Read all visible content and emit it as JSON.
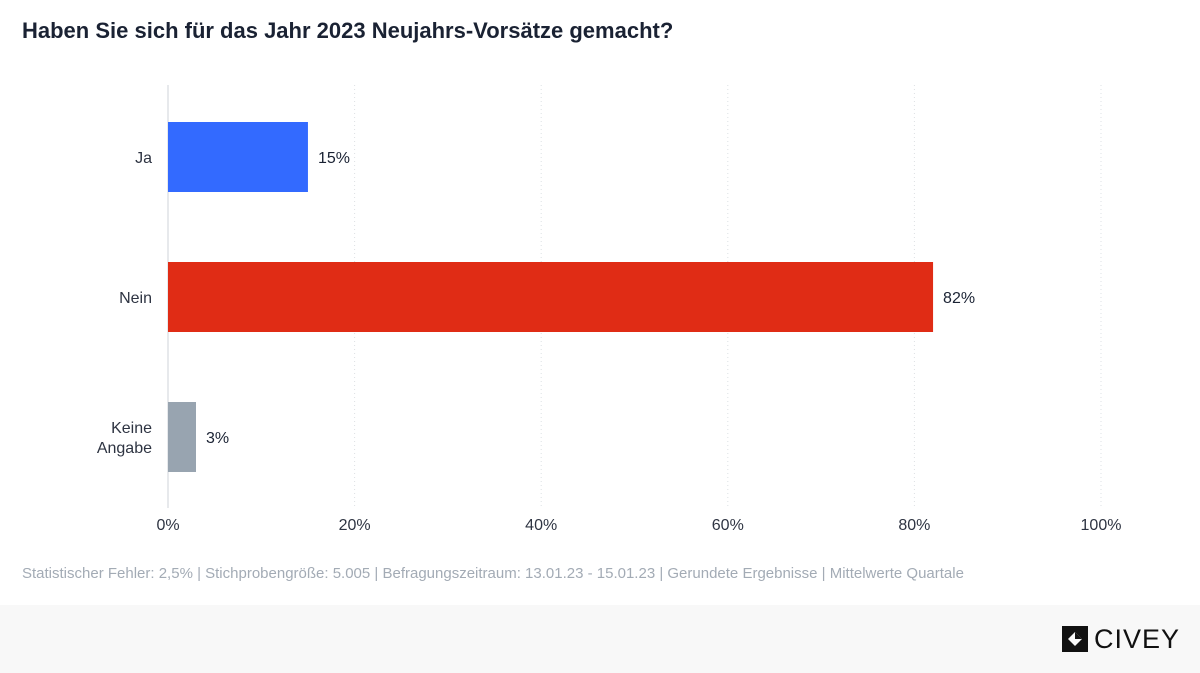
{
  "title": "Haben Sie sich für das Jahr 2023 Neujahrs-Vorsätze gemacht?",
  "footnote": "Statistischer Fehler: 2,5% | Stichprobengröße: 5.005 | Befragungszeitraum: 13.01.23 - 15.01.23 | Gerundete Ergebnisse | Mittelwerte Quartale",
  "brand": {
    "name": "CIVEY",
    "icon": "civey-logo-icon"
  },
  "chart_data": {
    "type": "bar",
    "orientation": "horizontal",
    "title": "Haben Sie sich für das Jahr 2023 Neujahrs-Vorsätze gemacht?",
    "categories": [
      [
        "Ja"
      ],
      [
        "Nein"
      ],
      [
        "Keine",
        "Angabe"
      ]
    ],
    "values": [
      15,
      82,
      3
    ],
    "value_labels": [
      "15%",
      "82%",
      "3%"
    ],
    "colors": [
      "#336aff",
      "#e02c15",
      "#98a4b0"
    ],
    "xlim": [
      0,
      100
    ],
    "xticks": [
      0,
      20,
      40,
      60,
      80,
      100
    ],
    "xtick_labels": [
      "0%",
      "20%",
      "40%",
      "60%",
      "80%",
      "100%"
    ],
    "grid": "vertical-dotted",
    "legend": "none"
  }
}
